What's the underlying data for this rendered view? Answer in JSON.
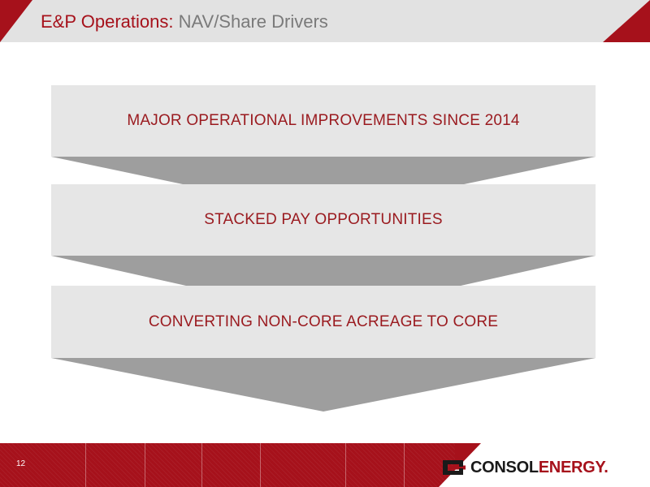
{
  "header": {
    "title_prefix": "E&P Operations:",
    "title_rest": "NAV/Share Drivers"
  },
  "steps": [
    {
      "label": "MAJOR OPERATIONAL IMPROVEMENTS SINCE 2014"
    },
    {
      "label": "STACKED PAY OPPORTUNITIES"
    },
    {
      "label": "CONVERTING NON-CORE ACREAGE TO CORE"
    }
  ],
  "footer": {
    "page_number": "12",
    "logo_word1": "CONSOL",
    "logo_word2": "ENERGY",
    "logo_mark": "."
  },
  "colors": {
    "brand_red": "#a6111b",
    "text_red": "#9a1a1f",
    "box_gray": "#e6e6e6",
    "chevron_gray": "#9e9e9e",
    "title_gray": "#7a7a7a"
  }
}
